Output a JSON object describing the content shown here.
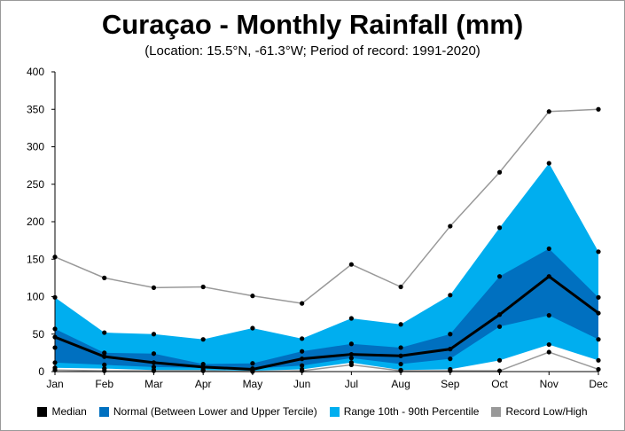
{
  "chart_data": {
    "type": "area",
    "title": "Curaçao - Monthly Rainfall (mm)",
    "subtitle": "(Location: 15.5°N, -61.3°W; Period of record: 1991-2020)",
    "xlabel": "",
    "ylabel": "",
    "categories": [
      "Jan",
      "Feb",
      "Mar",
      "Apr",
      "May",
      "Jun",
      "Jul",
      "Aug",
      "Sep",
      "Oct",
      "Nov",
      "Dec"
    ],
    "ylim": [
      0,
      400
    ],
    "yticks": [
      0,
      50,
      100,
      150,
      200,
      250,
      300,
      350,
      400
    ],
    "grid": false,
    "legend_position": "bottom",
    "series": [
      {
        "name": "Record Low/High",
        "role": "record",
        "color": "#999999",
        "low": [
          2,
          1,
          1,
          1,
          0,
          1,
          9,
          1,
          1,
          1,
          26,
          3
        ],
        "high": [
          153,
          125,
          112,
          113,
          101,
          91,
          143,
          113,
          194,
          266,
          347,
          350
        ]
      },
      {
        "name": "Range 10th - 90th Percentile",
        "role": "range",
        "color": "#00AEEF",
        "low": [
          5,
          4,
          2,
          2,
          1,
          3,
          12,
          2,
          3,
          15,
          36,
          15
        ],
        "high": [
          99,
          52,
          50,
          43,
          58,
          44,
          71,
          63,
          102,
          192,
          278,
          160
        ]
      },
      {
        "name": "Normal (Between Lower and Upper Tercile)",
        "role": "normal",
        "color": "#0070C0",
        "low": [
          12,
          9,
          6,
          5,
          4,
          8,
          18,
          10,
          17,
          60,
          75,
          43
        ],
        "high": [
          57,
          25,
          24,
          10,
          11,
          27,
          37,
          32,
          50,
          127,
          164,
          99
        ]
      },
      {
        "name": "Median",
        "role": "median",
        "color": "#000000",
        "values": [
          46,
          20,
          12,
          6,
          3,
          17,
          23,
          21,
          30,
          76,
          127,
          78
        ],
        "extra_points": [
          32,
          null,
          null,
          null,
          null,
          null,
          null,
          null,
          null,
          null,
          null,
          null
        ]
      }
    ]
  },
  "legend": [
    {
      "label": "Median",
      "color": "#000000"
    },
    {
      "label": "Normal (Between Lower and Upper Tercile)",
      "color": "#0070C0"
    },
    {
      "label": "Range 10th - 90th Percentile",
      "color": "#00AEEF"
    },
    {
      "label": "Record Low/High",
      "color": "#999999"
    }
  ]
}
